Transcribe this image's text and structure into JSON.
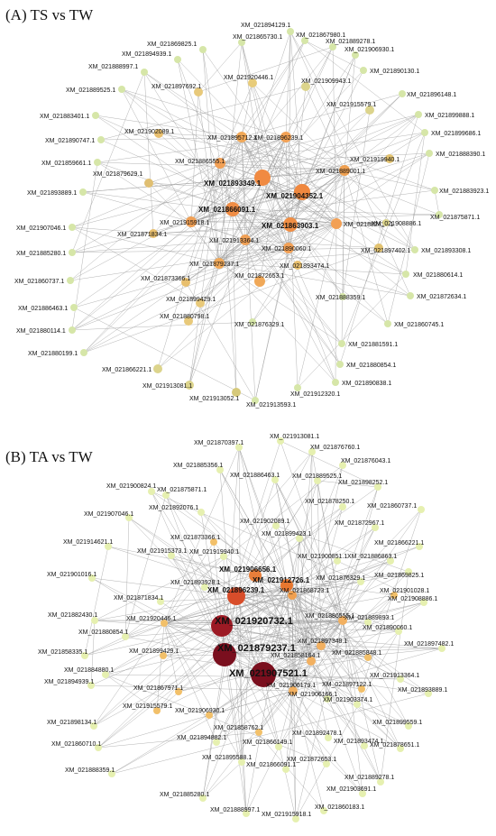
{
  "panels": [
    {
      "id": "A",
      "title": "(A) TS vs TW",
      "nodes": [
        {
          "label": "XM_021894129.1"
        },
        {
          "label": "XM_021865730.1"
        },
        {
          "label": "XM_021867980.1"
        },
        {
          "label": "XM_021869825.1"
        },
        {
          "label": "XM_021889278.1"
        },
        {
          "label": "XM_021894939.1"
        },
        {
          "label": "XM_021906930.1"
        },
        {
          "label": "XM_021888997.1"
        },
        {
          "label": "XM_021890130.1"
        },
        {
          "label": "XM_021920446.1"
        },
        {
          "label": "XM_021909943.1"
        },
        {
          "label": "XM_021889525.1"
        },
        {
          "label": "XM_021897692.1"
        },
        {
          "label": "XM_021896148.1"
        },
        {
          "label": "XM_021915579.1"
        },
        {
          "label": "XM_021883401.1"
        },
        {
          "label": "XM_021899888.1"
        },
        {
          "label": "XM_021902089.1"
        },
        {
          "label": "XM_021895712.1"
        },
        {
          "label": "XM_021896239.1"
        },
        {
          "label": "XM_021890747.1"
        },
        {
          "label": "XM_021899686.1"
        },
        {
          "label": "XM_021919940.1"
        },
        {
          "label": "XM_021888390.1"
        },
        {
          "label": "XM_021859661.1"
        },
        {
          "label": "XM_021886555.1"
        },
        {
          "label": "XM_021879629.1"
        },
        {
          "label": "XM_021889001.1"
        },
        {
          "label": "XM_021893349.1"
        },
        {
          "label": "XM_021883923.1"
        },
        {
          "label": "XM_021893889.1"
        },
        {
          "label": "XM_021904352.1"
        },
        {
          "label": "XM_021866091.1"
        },
        {
          "label": "XM_021875871.1"
        },
        {
          "label": "XM_021907046.1"
        },
        {
          "label": "XM_021915918.1"
        },
        {
          "label": "XM_021863903.1"
        },
        {
          "label": "XM_021882430.1"
        },
        {
          "label": "XM_021908886.1"
        },
        {
          "label": "XM_021871834.1"
        },
        {
          "label": "XM_021885280.1"
        },
        {
          "label": "XM_021913364.1"
        },
        {
          "label": "XM_021890060.1"
        },
        {
          "label": "XM_021897402.1"
        },
        {
          "label": "XM_021893308.1"
        },
        {
          "label": "XM_021879237.1"
        },
        {
          "label": "XM_021893474.1"
        },
        {
          "label": "XM_021860737.1"
        },
        {
          "label": "XM_021873366.1"
        },
        {
          "label": "XM_021872653.1"
        },
        {
          "label": "XM_021880614.1"
        },
        {
          "label": "XM_021888359.1"
        },
        {
          "label": "XM_021872634.1"
        },
        {
          "label": "XM_021886463.1"
        },
        {
          "label": "XM_021899429.1"
        },
        {
          "label": "XM_021880114.1"
        },
        {
          "label": "XM_021880798.1"
        },
        {
          "label": "XM_021876329.1"
        },
        {
          "label": "XM_021860745.1"
        },
        {
          "label": "XM_021880199.1"
        },
        {
          "label": "XM_021881591.1"
        },
        {
          "label": "XM_021866221.1"
        },
        {
          "label": "XM_021880854.1"
        },
        {
          "label": "XM_021913081.1"
        },
        {
          "label": "XM_021890838.1"
        },
        {
          "label": "XM_021913052.1"
        },
        {
          "label": "XM_021913593.1"
        },
        {
          "label": "XM_021912320.1"
        }
      ]
    },
    {
      "id": "B",
      "title": "(B) TA vs TW",
      "nodes": [
        {
          "label": "XM_021870397.1"
        },
        {
          "label": "XM_021913081.1"
        },
        {
          "label": "XM_021876760.1"
        },
        {
          "label": "XM_021885356.1"
        },
        {
          "label": "XM_021876043.1"
        },
        {
          "label": "XM_021886463.1"
        },
        {
          "label": "XM_021889525.1"
        },
        {
          "label": "XM_021900824.1"
        },
        {
          "label": "XM_021875871.1"
        },
        {
          "label": "XM_021898252.1"
        },
        {
          "label": "XM_021878250.1"
        },
        {
          "label": "XM_021907046.1"
        },
        {
          "label": "XM_021892076.1"
        },
        {
          "label": "XM_021860737.1"
        },
        {
          "label": "XM_021902089.1"
        },
        {
          "label": "XM_021872967.1"
        },
        {
          "label": "XM_021873366.1"
        },
        {
          "label": "XM_021899423.1"
        },
        {
          "label": "XM_021914621.1"
        },
        {
          "label": "XM_021866221.1"
        },
        {
          "label": "XM_021915373.1"
        },
        {
          "label": "XM_021919940.1"
        },
        {
          "label": "XM_021900851.1"
        },
        {
          "label": "XM_021886863.1"
        },
        {
          "label": "XM_021901016.1"
        },
        {
          "label": "XM_021906656.1"
        },
        {
          "label": "XM_021876329.1"
        },
        {
          "label": "XM_021869825.1"
        },
        {
          "label": "XM_021912726.1"
        },
        {
          "label": "XM_021893928.1"
        },
        {
          "label": "XM_021896239.1"
        },
        {
          "label": "XM_021868723.1"
        },
        {
          "label": "XM_021901028.1"
        },
        {
          "label": "XM_021871834.1"
        },
        {
          "label": "XM_021908886.1"
        },
        {
          "label": "XM_021882430.1"
        },
        {
          "label": "XM_021920732.1"
        },
        {
          "label": "XM_021920446.1"
        },
        {
          "label": "XM_021886555.1"
        },
        {
          "label": "XM_021889893.1"
        },
        {
          "label": "XM_021890060.1"
        },
        {
          "label": "XM_021880854.1"
        },
        {
          "label": "XM_021879237.1"
        },
        {
          "label": "XM_021897348.1"
        },
        {
          "label": "XM_021858335.1"
        },
        {
          "label": "XM_021897482.1"
        },
        {
          "label": "XM_021885848.1"
        },
        {
          "label": "XM_021899429.1"
        },
        {
          "label": "XM_021858164.1"
        },
        {
          "label": "XM_021884880.1"
        },
        {
          "label": "XM_021907521.1"
        },
        {
          "label": "XM_021913364.1"
        },
        {
          "label": "XM_021894939.1"
        },
        {
          "label": "XM_021906179.1"
        },
        {
          "label": "XM_021867971.1"
        },
        {
          "label": "XM_021897122.1"
        },
        {
          "label": "XM_021893889.1"
        },
        {
          "label": "XM_021906166.1"
        },
        {
          "label": "XM_021903374.1"
        },
        {
          "label": "XM_021915579.1"
        },
        {
          "label": "XM_021899559.1"
        },
        {
          "label": "XM_021898134.1"
        },
        {
          "label": "XM_021906930.1"
        },
        {
          "label": "XM_021892478.1"
        },
        {
          "label": "XM_021893474.1"
        },
        {
          "label": "XM_021858762.1"
        },
        {
          "label": "XM_021878651.1"
        },
        {
          "label": "XM_021894882.1"
        },
        {
          "label": "XM_021866149.1"
        },
        {
          "label": "XM_021860710.1"
        },
        {
          "label": "XM_021895588.1"
        },
        {
          "label": "XM_021872653.1"
        },
        {
          "label": "XM_021866091.1"
        },
        {
          "label": "XM_021889278.1"
        },
        {
          "label": "XM_021888359.1"
        },
        {
          "label": "XM_021903691.1"
        },
        {
          "label": "XM_021885280.1"
        },
        {
          "label": "XM_021888997.1"
        },
        {
          "label": "XM_021915918.1"
        },
        {
          "label": "XM_021860183.1"
        }
      ]
    }
  ]
}
